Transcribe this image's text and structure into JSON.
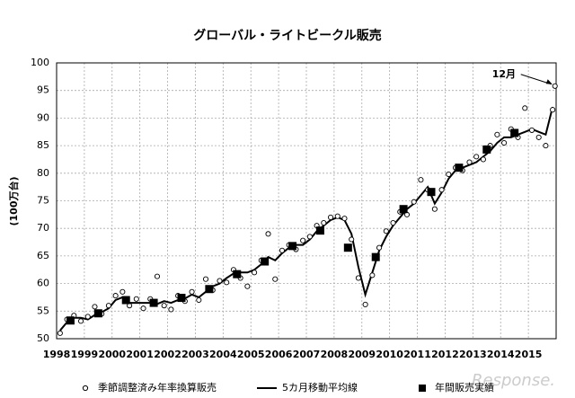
{
  "chart_data": {
    "type": "line",
    "title": "グローバル・ライトビークル販売",
    "y_label": "(100万台)",
    "annotation": "12月",
    "watermark": "Response.",
    "xlim": [
      1998,
      2016
    ],
    "xticks": [
      1998,
      1999,
      2000,
      2001,
      2002,
      2003,
      2004,
      2005,
      2006,
      2007,
      2008,
      2009,
      2010,
      2011,
      2012,
      2013,
      2014,
      2015
    ],
    "ylim": [
      50,
      100
    ],
    "yticks": [
      50,
      55,
      60,
      65,
      70,
      75,
      80,
      85,
      90,
      95,
      100
    ],
    "grid": true,
    "series": [
      {
        "name": "季節調整済み年率換算販売",
        "marker": "circle",
        "color": "#000000",
        "x": [
          1998.125,
          1998.375,
          1998.625,
          1998.875,
          1999.125,
          1999.375,
          1999.625,
          1999.875,
          2000.125,
          2000.375,
          2000.625,
          2000.875,
          2001.125,
          2001.375,
          2001.625,
          2001.875,
          2002.125,
          2002.375,
          2002.625,
          2002.875,
          2003.125,
          2003.375,
          2003.625,
          2003.875,
          2004.125,
          2004.375,
          2004.625,
          2004.875,
          2005.125,
          2005.375,
          2005.625,
          2005.875,
          2006.125,
          2006.375,
          2006.625,
          2006.875,
          2007.125,
          2007.375,
          2007.625,
          2007.875,
          2008.125,
          2008.375,
          2008.625,
          2008.875,
          2009.125,
          2009.375,
          2009.625,
          2009.875,
          2010.125,
          2010.375,
          2010.625,
          2010.875,
          2011.125,
          2011.375,
          2011.625,
          2011.875,
          2012.125,
          2012.375,
          2012.625,
          2012.875,
          2013.125,
          2013.375,
          2013.625,
          2013.875,
          2014.125,
          2014.375,
          2014.625,
          2014.875,
          2015.125,
          2015.375,
          2015.625,
          2015.875,
          2015.958
        ],
        "values": [
          51,
          53.5,
          54.2,
          53.2,
          54,
          55.8,
          54.5,
          56,
          57.8,
          58.5,
          56,
          57.2,
          55.5,
          57.2,
          61.3,
          56,
          55.3,
          57.8,
          56.8,
          58.5,
          57,
          60.8,
          58.8,
          60.5,
          60.2,
          62.5,
          61,
          59.5,
          62,
          64.2,
          69,
          60.8,
          66,
          67,
          66.2,
          67.8,
          68.5,
          70.5,
          71,
          72,
          72.2,
          71.8,
          68,
          61,
          56.2,
          61.5,
          66.5,
          69.5,
          71,
          73,
          72.5,
          74.8,
          78.8,
          77,
          73.5,
          77,
          79.8,
          81,
          80.5,
          82,
          83,
          82.5,
          85,
          87,
          85.5,
          88,
          86.5,
          91.8,
          87.8,
          86.5,
          85,
          91.5,
          95.8
        ]
      },
      {
        "name": "5カ月移動平均線",
        "marker": "line",
        "color": "#000000",
        "x": [
          1998.125,
          1998.375,
          1998.625,
          1998.875,
          1999.125,
          1999.375,
          1999.625,
          1999.875,
          2000.125,
          2000.375,
          2000.625,
          2000.875,
          2001.125,
          2001.375,
          2001.625,
          2001.875,
          2002.125,
          2002.375,
          2002.625,
          2002.875,
          2003.125,
          2003.375,
          2003.625,
          2003.875,
          2004.125,
          2004.375,
          2004.625,
          2004.875,
          2005.125,
          2005.375,
          2005.625,
          2005.875,
          2006.125,
          2006.375,
          2006.625,
          2006.875,
          2007.125,
          2007.375,
          2007.625,
          2007.875,
          2008.125,
          2008.375,
          2008.625,
          2008.875,
          2009.125,
          2009.375,
          2009.625,
          2009.875,
          2010.125,
          2010.375,
          2010.625,
          2010.875,
          2011.125,
          2011.375,
          2011.625,
          2011.875,
          2012.125,
          2012.375,
          2012.625,
          2012.875,
          2013.125,
          2013.375,
          2013.625,
          2013.875,
          2014.125,
          2014.375,
          2014.625,
          2014.875,
          2015.125,
          2015.375,
          2015.625,
          2015.875
        ],
        "values": [
          51.5,
          53,
          53.8,
          53.8,
          53.5,
          54.3,
          54.8,
          55.5,
          57,
          57.5,
          56.5,
          56.5,
          56.5,
          56.5,
          56.3,
          56.8,
          56.5,
          57,
          57.3,
          58,
          57.5,
          58.5,
          59.5,
          60,
          61,
          61.8,
          62,
          62,
          62.5,
          63.5,
          64.8,
          64.2,
          65.5,
          66.5,
          67,
          67,
          68,
          69.5,
          70.5,
          71.5,
          72,
          71.5,
          69,
          63,
          58,
          62,
          66,
          68.5,
          70.5,
          72,
          73.5,
          74.5,
          76,
          77.5,
          74.5,
          76.5,
          79,
          80.5,
          81,
          81.5,
          82,
          83,
          84,
          85.5,
          86.5,
          86.5,
          87,
          87.5,
          88,
          87.5,
          87,
          92
        ]
      },
      {
        "name": "年間販売実績",
        "marker": "square",
        "color": "#000000",
        "x": [
          1998.5,
          1999.5,
          2000.5,
          2001.5,
          2002.5,
          2003.5,
          2004.5,
          2005.5,
          2006.5,
          2007.5,
          2008.5,
          2009.5,
          2010.5,
          2011.5,
          2012.5,
          2013.5,
          2014.5
        ],
        "values": [
          53.3,
          54.6,
          57,
          56.5,
          57.4,
          59,
          61.7,
          64,
          66.8,
          69.6,
          66.5,
          64.8,
          73.5,
          76.6,
          81,
          84.3,
          87.3
        ]
      }
    ]
  }
}
